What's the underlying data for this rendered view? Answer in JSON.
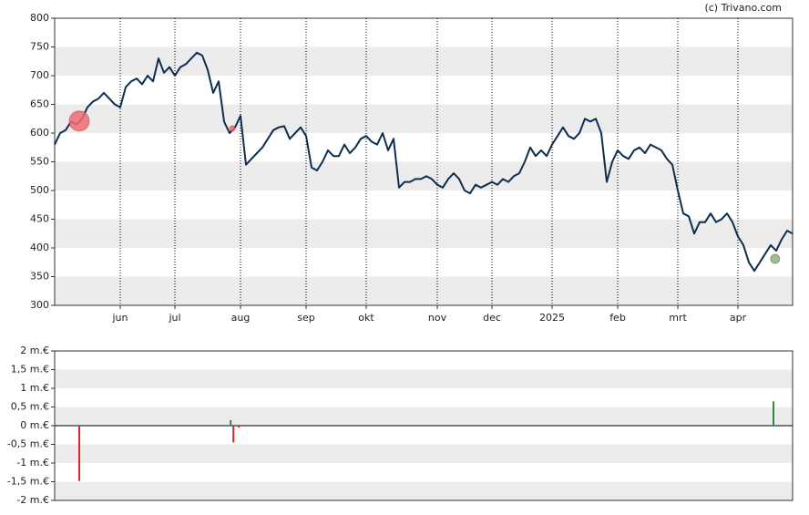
{
  "credit": "(c) Trivano.com",
  "chart_data": [
    {
      "type": "line",
      "color": "#0d2e4e",
      "categories": [
        null,
        null,
        null,
        null,
        null,
        null,
        null,
        null,
        null,
        null,
        null,
        null,
        "jun",
        null,
        null,
        null,
        null,
        null,
        null,
        null,
        null,
        null,
        "jul",
        null,
        null,
        null,
        null,
        null,
        null,
        null,
        null,
        null,
        null,
        null,
        "aug",
        null,
        null,
        null,
        null,
        null,
        null,
        null,
        null,
        null,
        null,
        null,
        "sep",
        null,
        null,
        null,
        null,
        null,
        null,
        null,
        null,
        null,
        null,
        "okt",
        null,
        null,
        null,
        null,
        null,
        null,
        null,
        null,
        null,
        null,
        null,
        null,
        "nov",
        null,
        null,
        null,
        null,
        null,
        null,
        null,
        null,
        null,
        "dec",
        null,
        null,
        null,
        null,
        null,
        null,
        null,
        null,
        null,
        null,
        "2025",
        null,
        null,
        null,
        null,
        null,
        null,
        null,
        null,
        null,
        null,
        null,
        "feb",
        null,
        null,
        null,
        null,
        null,
        null,
        null,
        null,
        null,
        null,
        "mrt",
        null,
        null,
        null,
        null,
        null,
        null,
        null,
        null,
        null,
        null,
        "apr",
        null,
        null,
        null,
        null,
        null,
        null,
        null,
        null,
        null,
        null
      ],
      "values": [
        580,
        600,
        605,
        620,
        615,
        625,
        645,
        655,
        660,
        670,
        660,
        650,
        645,
        680,
        690,
        695,
        685,
        700,
        690,
        730,
        705,
        715,
        700,
        715,
        720,
        730,
        740,
        735,
        710,
        670,
        690,
        620,
        600,
        610,
        630,
        545,
        555,
        565,
        575,
        590,
        605,
        610,
        612,
        590,
        600,
        610,
        595,
        540,
        535,
        550,
        570,
        560,
        560,
        580,
        565,
        575,
        590,
        595,
        585,
        580,
        600,
        570,
        590,
        505,
        515,
        515,
        520,
        520,
        525,
        520,
        510,
        505,
        520,
        530,
        520,
        500,
        495,
        510,
        505,
        510,
        515,
        510,
        520,
        515,
        525,
        530,
        550,
        575,
        560,
        570,
        560,
        580,
        595,
        610,
        595,
        590,
        600,
        625,
        620,
        625,
        600,
        515,
        550,
        570,
        560,
        555,
        570,
        575,
        565,
        580,
        575,
        570,
        555,
        545,
        500,
        460,
        455,
        425,
        445,
        445,
        460,
        445,
        450,
        460,
        445,
        420,
        405,
        375,
        360,
        375,
        390,
        405,
        395,
        415,
        430,
        425
      ],
      "markers": {
        "x": [
          4.5,
          32.5,
          131.8
        ],
        "values": [
          621,
          608,
          381
        ],
        "sizes": [
          11,
          3,
          5
        ],
        "colors": [
          "#f26b76",
          "#f26b76",
          "#7dbb7d"
        ]
      },
      "ylim": [
        300,
        800
      ],
      "yticks": [
        300,
        350,
        400,
        450,
        500,
        550,
        600,
        650,
        700,
        750,
        800
      ],
      "grid": true
    },
    {
      "type": "bar",
      "x": [
        4.5,
        32.2,
        32.7,
        33.7,
        131.5
      ],
      "xlim": [
        0,
        135
      ],
      "values": [
        -1.48,
        0.15,
        -0.45,
        -0.05,
        0.65
      ],
      "colors": [
        "#e8202a",
        "#2e8b3e",
        "#e8202a",
        "#e8202a",
        "#2e8b3e"
      ],
      "ylim": [
        -2,
        2
      ],
      "yticks": [
        {
          "value": -2,
          "label": "-2 m.€"
        },
        {
          "value": -1.5,
          "label": "-1,5 m.€"
        },
        {
          "value": -1,
          "label": "-1 m.€"
        },
        {
          "value": -0.5,
          "label": "-0,5 m.€"
        },
        {
          "value": 0,
          "label": "0 m.€"
        },
        {
          "value": 0.5,
          "label": "0,5 m.€"
        },
        {
          "value": 1,
          "label": "1 m.€"
        },
        {
          "value": 1.5,
          "label": "1,5 m.€"
        },
        {
          "value": 2,
          "label": "2 m.€"
        }
      ],
      "grid": true
    }
  ]
}
